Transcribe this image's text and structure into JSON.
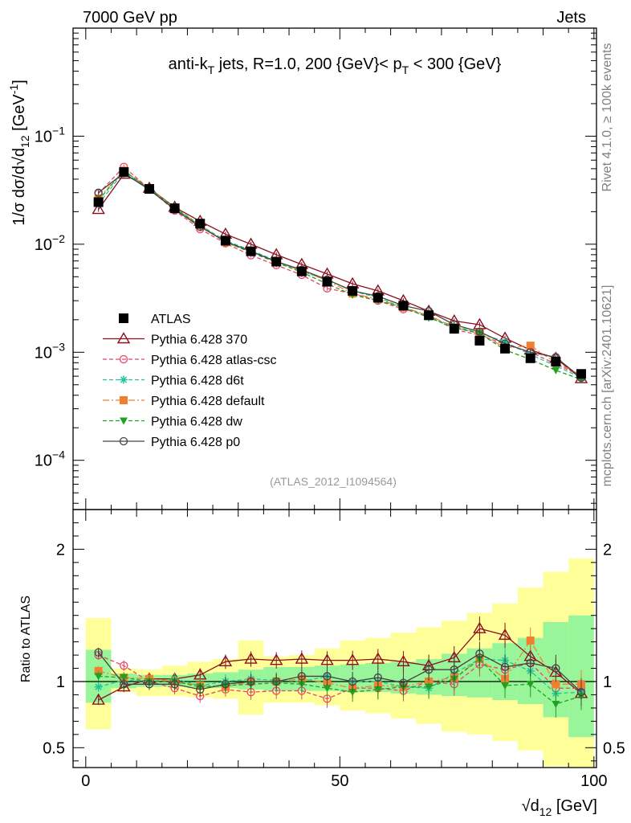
{
  "header": {
    "left": "7000 GeV pp",
    "right": "Jets"
  },
  "side_labels": {
    "top": "Rivet 4.1.0, ≥ 100k events",
    "bottom": "mcplots.cern.ch [arXiv:2401.10621]"
  },
  "watermark": "(ATLAS_2012_I1094564)",
  "chart_data": [
    {
      "panel": "main",
      "type": "line",
      "title": "anti-k_T jets, R=1.0, 200 {GeV}< p_T < 300 {GeV}",
      "title_parts": {
        "pre": "anti-k",
        "sub1": "T",
        "mid": " jets, R=1.0, 200 {GeV}< p",
        "sub2": "T",
        "post": " < 300 {GeV}"
      },
      "ylabel": "1/σ dσ/d√d12 [GeV⁻¹]",
      "ylabel_parts": {
        "pre": "1/σ dσ/d",
        "root": "√",
        "d": "d",
        "sub": "12",
        "unit": " [GeV",
        "sup": "-1",
        "close": "]"
      },
      "yscale": "log",
      "ylim": [
        3.5e-05,
        1.0
      ],
      "xlim": [
        -2.5,
        100.5
      ],
      "y_ticks": [
        {
          "value": 0.1,
          "base": "10",
          "exp": "−1"
        },
        {
          "value": 0.01,
          "base": "10",
          "exp": "−2"
        },
        {
          "value": 0.001,
          "base": "10",
          "exp": "−3"
        },
        {
          "value": 0.0001,
          "base": "10",
          "exp": "−4"
        }
      ],
      "x": [
        2.5,
        7.5,
        12.5,
        17.5,
        22.5,
        27.5,
        32.5,
        37.5,
        42.5,
        47.5,
        52.5,
        57.5,
        62.5,
        67.5,
        72.5,
        77.5,
        82.5,
        87.5,
        92.5,
        97.5
      ],
      "atlas": {
        "name": "ATLAS",
        "values": [
          0.0245,
          0.0465,
          0.0325,
          0.0215,
          0.0155,
          0.0108,
          0.0086,
          0.0069,
          0.0056,
          0.0045,
          0.0037,
          0.0032,
          0.0027,
          0.0022,
          0.00165,
          0.00128,
          0.00108,
          0.00088,
          0.00082,
          0.00063
        ]
      },
      "series": [
        {
          "name": "Pythia 6.428 370",
          "color": "#8b0f1e",
          "dash": "",
          "marker": "triangle-open",
          "values": [
            0.021,
            0.0445,
            0.033,
            0.022,
            0.0163,
            0.0124,
            0.01,
            0.008,
            0.0065,
            0.0053,
            0.0043,
            0.0037,
            0.003,
            0.0024,
            0.00195,
            0.0018,
            0.00135,
            0.00105,
            0.00088,
            0.00057
          ]
        },
        {
          "name": "Pythia 6.428 atlas-csc",
          "color": "#e8456b",
          "dash": "5,3",
          "marker": "circle-open",
          "values": [
            0.0295,
            0.052,
            0.0325,
            0.0205,
            0.0138,
            0.0102,
            0.0079,
            0.0064,
            0.0052,
            0.0039,
            0.0035,
            0.003,
            0.0025,
            0.0022,
            0.00162,
            0.00145,
            0.00118,
            0.001,
            0.00078,
            0.0006
          ]
        },
        {
          "name": "Pythia 6.428 d6t",
          "color": "#22c49a",
          "dash": "5,3",
          "marker": "star",
          "values": [
            0.0235,
            0.047,
            0.0325,
            0.022,
            0.015,
            0.0108,
            0.0088,
            0.007,
            0.0056,
            0.0047,
            0.0037,
            0.0032,
            0.0026,
            0.0021,
            0.00175,
            0.0015,
            0.00125,
            0.00095,
            0.00075,
            0.00058
          ]
        },
        {
          "name": "Pythia 6.428 default",
          "color": "#f08030",
          "dash": "8,3,2,3",
          "marker": "square",
          "values": [
            0.0265,
            0.048,
            0.033,
            0.0215,
            0.015,
            0.0104,
            0.0086,
            0.0069,
            0.0057,
            0.0046,
            0.0035,
            0.0031,
            0.0026,
            0.0022,
            0.0017,
            0.0015,
            0.0011,
            0.00115,
            0.0008,
            0.00062
          ]
        },
        {
          "name": "Pythia 6.428 dw",
          "color": "#22a020",
          "dash": "5,3",
          "marker": "triangle-down",
          "values": [
            0.0255,
            0.048,
            0.0325,
            0.0215,
            0.0148,
            0.0105,
            0.0084,
            0.0068,
            0.0055,
            0.0043,
            0.0034,
            0.003,
            0.0026,
            0.0021,
            0.00168,
            0.0015,
            0.00105,
            0.00086,
            0.00068,
            0.00056
          ]
        },
        {
          "name": "Pythia 6.428 p0",
          "color": "#444444",
          "dash": "",
          "marker": "circle-open",
          "values": [
            0.03,
            0.0455,
            0.032,
            0.021,
            0.0145,
            0.0106,
            0.0086,
            0.0069,
            0.0058,
            0.0047,
            0.0037,
            0.0033,
            0.0027,
            0.0024,
            0.0018,
            0.00155,
            0.0012,
            0.001,
            0.0009,
            0.00058
          ]
        }
      ],
      "legend": "left-middle"
    },
    {
      "panel": "ratio",
      "type": "line",
      "ylabel": "Ratio to ATLAS",
      "ylim": [
        0.35,
        2.3
      ],
      "y_ticks": [
        0.5,
        1,
        2
      ],
      "y_tick_labels": [
        "0.5",
        "1",
        "2"
      ],
      "xlabel": "√d12 [GeV]",
      "xlabel_parts": {
        "root": "√",
        "d": "d",
        "sub": "12",
        "unit": " [GeV]"
      },
      "x_ticks": [
        0,
        50,
        100
      ],
      "x_tick_labels": [
        "0",
        "50",
        "100"
      ],
      "x": [
        2.5,
        7.5,
        12.5,
        17.5,
        22.5,
        27.5,
        32.5,
        37.5,
        42.5,
        47.5,
        52.5,
        57.5,
        62.5,
        67.5,
        72.5,
        77.5,
        82.5,
        87.5,
        92.5,
        97.5
      ],
      "stat_band": [
        [
          0.84,
          1.24
        ],
        [
          0.95,
          1.06
        ],
        [
          0.96,
          1.05
        ],
        [
          0.96,
          1.05
        ],
        [
          0.95,
          1.06
        ],
        [
          0.95,
          1.07
        ],
        [
          0.94,
          1.09
        ],
        [
          0.93,
          1.11
        ],
        [
          0.93,
          1.11
        ],
        [
          0.93,
          1.12
        ],
        [
          0.92,
          1.13
        ],
        [
          0.92,
          1.14
        ],
        [
          0.91,
          1.15
        ],
        [
          0.9,
          1.17
        ],
        [
          0.89,
          1.21
        ],
        [
          0.88,
          1.25
        ],
        [
          0.86,
          1.29
        ],
        [
          0.83,
          1.33
        ],
        [
          0.73,
          1.45
        ],
        [
          0.58,
          1.5
        ]
      ],
      "syst_band": [
        [
          0.64,
          1.48
        ],
        [
          0.92,
          1.1
        ],
        [
          0.89,
          1.09
        ],
        [
          0.89,
          1.12
        ],
        [
          0.88,
          1.15
        ],
        [
          0.87,
          1.17
        ],
        [
          0.75,
          1.31
        ],
        [
          0.84,
          1.19
        ],
        [
          0.84,
          1.2
        ],
        [
          0.82,
          1.25
        ],
        [
          0.78,
          1.31
        ],
        [
          0.76,
          1.33
        ],
        [
          0.72,
          1.37
        ],
        [
          0.68,
          1.41
        ],
        [
          0.62,
          1.46
        ],
        [
          0.6,
          1.52
        ],
        [
          0.55,
          1.59
        ],
        [
          0.48,
          1.71
        ],
        [
          0.36,
          1.83
        ],
        [
          0.2,
          1.93
        ]
      ],
      "series": [
        {
          "name": "Pythia 6.428 370",
          "values": [
            0.86,
            0.96,
            1.02,
            1.02,
            1.05,
            1.15,
            1.17,
            1.16,
            1.17,
            1.16,
            1.16,
            1.17,
            1.15,
            1.12,
            1.18,
            1.4,
            1.35,
            1.19,
            1.07,
            0.91
          ]
        },
        {
          "name": "Pythia 6.428 atlas-csc",
          "values": [
            1.2,
            1.12,
            1.0,
            0.95,
            0.89,
            0.94,
            0.92,
            0.93,
            0.93,
            0.87,
            0.95,
            0.95,
            0.93,
            1.0,
            0.98,
            1.13,
            1.09,
            1.14,
            0.95,
            0.95
          ]
        },
        {
          "name": "Pythia 6.428 d6t",
          "values": [
            0.96,
            1.01,
            1.0,
            1.02,
            0.97,
            1.0,
            1.02,
            1.01,
            1.0,
            1.04,
            1.0,
            1.0,
            0.96,
            0.95,
            1.06,
            1.17,
            1.16,
            1.08,
            0.91,
            0.92
          ]
        },
        {
          "name": "Pythia 6.428 default",
          "values": [
            1.08,
            1.03,
            1.02,
            1.0,
            0.97,
            0.96,
            1.0,
            1.0,
            1.02,
            0.99,
            0.95,
            0.97,
            0.96,
            1.0,
            1.03,
            1.17,
            1.02,
            1.31,
            0.98,
            0.98
          ]
        },
        {
          "name": "Pythia 6.428 dw",
          "values": [
            1.04,
            1.03,
            1.0,
            1.0,
            0.96,
            0.97,
            0.98,
            0.99,
            0.98,
            0.95,
            0.92,
            0.94,
            0.96,
            0.96,
            1.02,
            1.17,
            0.97,
            0.98,
            0.83,
            0.89
          ]
        },
        {
          "name": "Pythia 6.428 p0",
          "values": [
            1.22,
            0.98,
            0.98,
            0.98,
            0.94,
            0.98,
            1.0,
            1.0,
            1.04,
            1.04,
            1.0,
            1.03,
            0.99,
            1.09,
            1.09,
            1.21,
            1.11,
            1.14,
            1.1,
            0.92
          ]
        }
      ]
    }
  ]
}
